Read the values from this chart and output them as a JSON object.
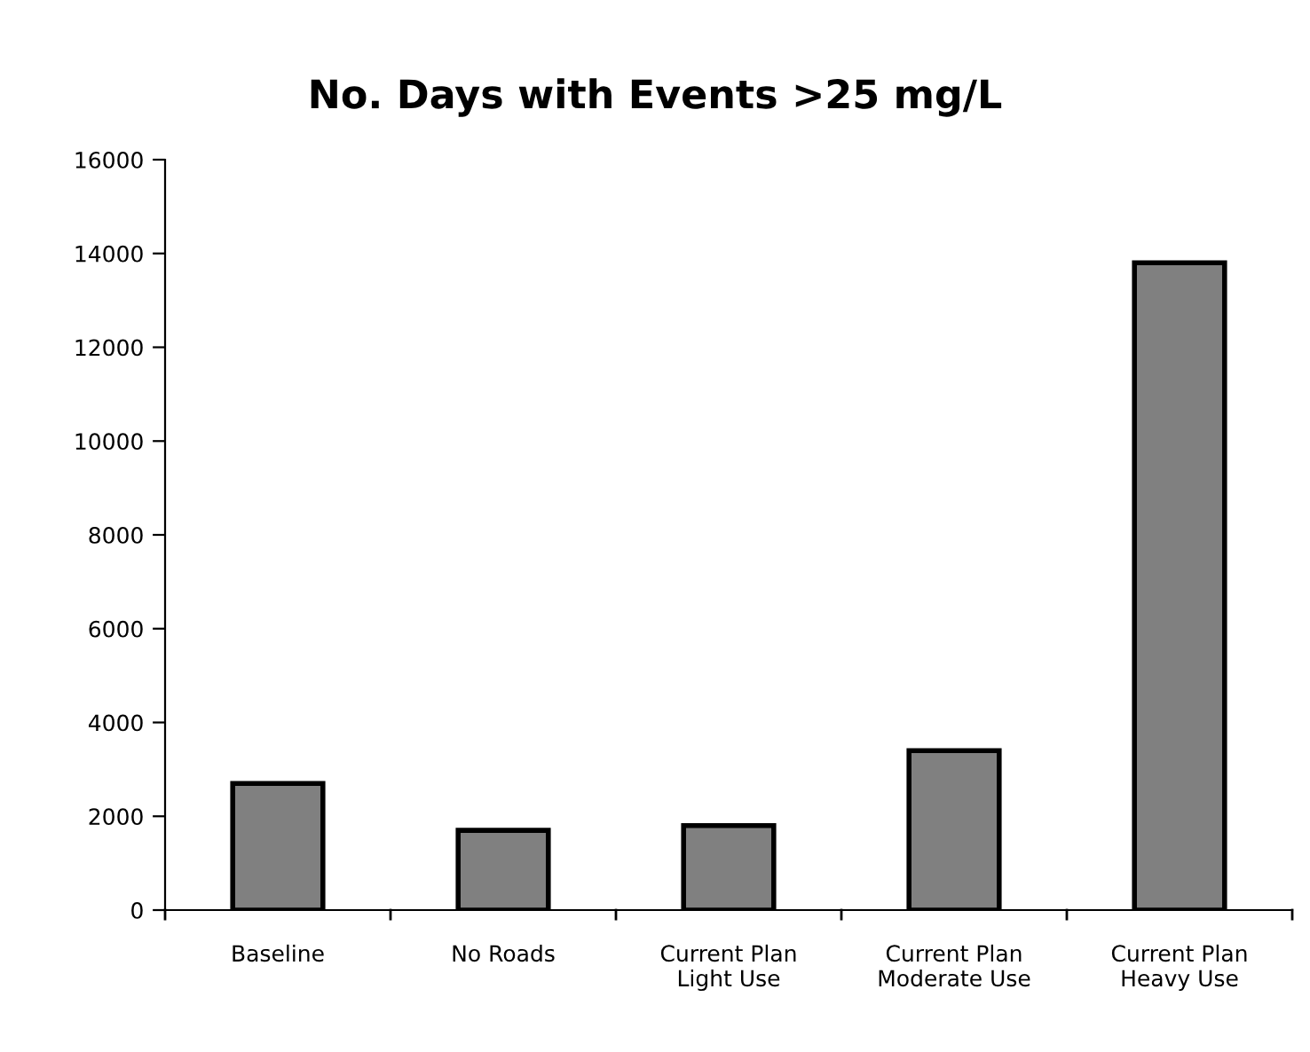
{
  "chart_data": {
    "type": "bar",
    "title": "No. Days with Events >25 mg/L",
    "categories": [
      "Baseline",
      "No Roads",
      "Current Plan\nLight Use",
      "Current Plan\nModerate Use",
      "Current Plan\nHeavy Use"
    ],
    "values": [
      2700,
      1700,
      1800,
      3400,
      13800
    ],
    "color": "#808080",
    "ylim": [
      0,
      16000
    ],
    "yticks": [
      0,
      2000,
      4000,
      6000,
      8000,
      10000,
      12000,
      14000,
      16000
    ],
    "grid": false
  }
}
